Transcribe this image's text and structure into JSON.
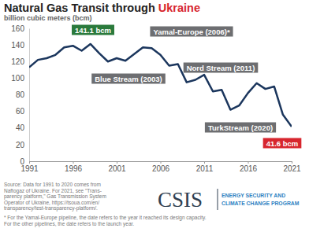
{
  "chart_data": {
    "type": "line",
    "title": "Natural Gas Transit through Ukraine",
    "subtitle": "billion cubic meters (bcm)",
    "x": [
      1991,
      1992,
      1993,
      1994,
      1995,
      1996,
      1997,
      1998,
      1999,
      2000,
      2001,
      2002,
      2003,
      2004,
      2005,
      2006,
      2007,
      2008,
      2009,
      2010,
      2011,
      2012,
      2013,
      2014,
      2015,
      2016,
      2017,
      2018,
      2019,
      2020,
      2021
    ],
    "values": [
      113,
      122,
      124,
      128,
      137,
      139,
      133,
      141.1,
      130,
      120,
      124,
      121,
      129,
      137,
      136,
      128,
      115,
      117,
      95,
      98,
      104,
      84,
      86,
      62,
      67,
      82,
      94,
      87,
      90,
      56,
      41.6
    ],
    "color": "#1b365d",
    "xlim": [
      1991,
      2021
    ],
    "xticks": [
      1991,
      1996,
      2001,
      2006,
      2011,
      2016,
      2021
    ],
    "ylim": [
      0,
      160
    ],
    "yticks": [
      0,
      20,
      40,
      60,
      80,
      100,
      120,
      140,
      160
    ],
    "grid": false,
    "annotations": [
      "141.1 bcm",
      "Yamal-Europe (2006)*",
      "Blue Stream (2003)",
      "Nord Stream (2011)",
      "TurkStream (2020)",
      "41.6 bcm"
    ],
    "source": [
      "Source: Data for 1991 to 2020 comes from",
      "Naftogaz of Ukraine. For 2021, see \"Trans-",
      "parency platform,\" Gas Transmission System",
      "Operator of Ukraine, https://tsoua.com/en/",
      "transparency/test-transparency-platform/."
    ],
    "footnote": [
      "* For the Yamal-Europe pipeline, the date refers to the year it reached its design capacity.",
      "For the other pipelines, the date refers to the launch year."
    ],
    "logo": {
      "name": "CSIS",
      "program": [
        "ENERGY SECURITY AND",
        "CLIMATE CHANGE PROGRAM"
      ]
    }
  }
}
